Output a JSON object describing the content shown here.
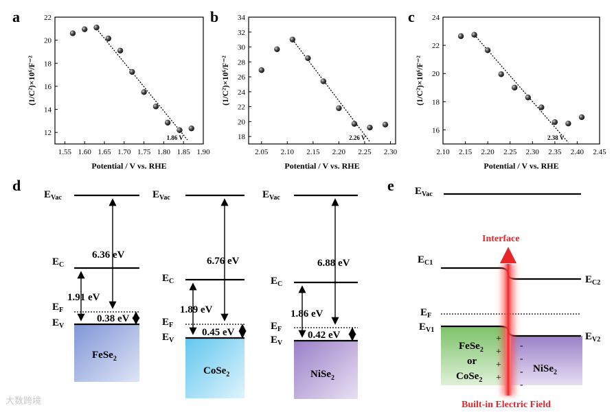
{
  "panels": {
    "a": {
      "letter": "a",
      "chart_data": {
        "type": "scatter",
        "title": "",
        "xlabel": "Potential / V vs. RHE",
        "ylabel": "(1/C²)×10⁶/F⁻²",
        "xlim": [
          1.525,
          1.9
        ],
        "ylim": [
          11,
          22
        ],
        "xticks": [
          "1.55",
          "1.60",
          "1.65",
          "1.70",
          "1.75",
          "1.80",
          "1.85",
          "1.90"
        ],
        "yticks": [
          "12",
          "14",
          "16",
          "18",
          "20",
          "22"
        ],
        "points": [
          [
            1.57,
            20.6
          ],
          [
            1.6,
            20.95
          ],
          [
            1.63,
            21.1
          ],
          [
            1.66,
            20.15
          ],
          [
            1.69,
            19.1
          ],
          [
            1.72,
            17.25
          ],
          [
            1.75,
            15.5
          ],
          [
            1.78,
            14.25
          ],
          [
            1.81,
            12.85
          ],
          [
            1.84,
            12.2
          ],
          [
            1.87,
            12.35
          ]
        ],
        "fit": [
          [
            1.63,
            21.0
          ],
          [
            1.86,
            11.35
          ]
        ],
        "fit_label": "1.86 V"
      }
    },
    "b": {
      "letter": "b",
      "chart_data": {
        "type": "scatter",
        "title": "",
        "xlabel": "Potential / V vs. RHE",
        "ylabel": "(1/C²)×10⁶/F⁻²",
        "xlim": [
          2.025,
          2.31
        ],
        "ylim": [
          17,
          34
        ],
        "xticks": [
          "2.05",
          "2.10",
          "2.15",
          "2.20",
          "2.25",
          "2.30"
        ],
        "yticks": [
          "18",
          "20",
          "22",
          "24",
          "26",
          "28",
          "30",
          "32",
          "34"
        ],
        "points": [
          [
            2.05,
            26.9
          ],
          [
            2.08,
            29.7
          ],
          [
            2.11,
            31.0
          ],
          [
            2.14,
            28.5
          ],
          [
            2.17,
            25.4
          ],
          [
            2.2,
            21.8
          ],
          [
            2.23,
            19.7
          ],
          [
            2.26,
            19.2
          ],
          [
            2.29,
            19.6
          ]
        ],
        "fit": [
          [
            2.11,
            31.0
          ],
          [
            2.26,
            17.3
          ]
        ],
        "fit_label": "2.26 V"
      }
    },
    "c": {
      "letter": "c",
      "chart_data": {
        "type": "scatter",
        "title": "",
        "xlabel": "Potential / V vs. RHE",
        "ylabel": "(1/C²)×10⁶/F⁻²",
        "xlim": [
          2.1,
          2.45
        ],
        "ylim": [
          15,
          24
        ],
        "xticks": [
          "2.10",
          "2.15",
          "2.20",
          "2.25",
          "2.30",
          "2.35",
          "2.40",
          "2.45"
        ],
        "yticks": [
          "16",
          "18",
          "20",
          "22",
          "24"
        ],
        "points": [
          [
            2.14,
            22.65
          ],
          [
            2.17,
            22.75
          ],
          [
            2.2,
            21.65
          ],
          [
            2.23,
            19.95
          ],
          [
            2.26,
            19.0
          ],
          [
            2.29,
            18.3
          ],
          [
            2.32,
            17.6
          ],
          [
            2.35,
            16.55
          ],
          [
            2.38,
            16.45
          ],
          [
            2.41,
            16.9
          ]
        ],
        "fit": [
          [
            2.17,
            22.75
          ],
          [
            2.38,
            15.1
          ]
        ],
        "fit_label": "2.38 V"
      }
    },
    "d": {
      "letter": "d",
      "evac": "E",
      "evac_sub": "Vac",
      "ec": "E",
      "ec_sub": "C",
      "ef": "E",
      "ef_sub": "F",
      "ev": "E",
      "ev_sub": "V",
      "materials": [
        {
          "name": "FeSe",
          "sub": "2",
          "work": "6.36 eV",
          "gap": "1.91 eV",
          "offset": "0.38 eV",
          "color_top": "#7f95d6",
          "color_bottom": "#dfe5f6"
        },
        {
          "name": "CoSe",
          "sub": "2",
          "work": "6.76 eV",
          "gap": "1.89 eV",
          "offset": "0.45 eV",
          "color_top": "#62c6ef",
          "color_bottom": "#e0f4fc"
        },
        {
          "name": "NiSe",
          "sub": "2",
          "work": "6.88 eV",
          "gap": "1.86 eV",
          "offset": "0.42 eV",
          "color_top": "#9a80c8",
          "color_bottom": "#e8e0f2"
        }
      ]
    },
    "e": {
      "letter": "e",
      "evac": "E",
      "evac_sub": "Vac",
      "ec1": "E",
      "ec1_sub": "C1",
      "ec2": "E",
      "ec2_sub": "C2",
      "ef": "E",
      "ef_sub": "F",
      "ev1": "E",
      "ev1_sub": "V1",
      "ev2": "E",
      "ev2_sub": "V2",
      "interface": "Interface",
      "field": "Built-in Electric Field",
      "left_line1": "FeSe",
      "left_line1_sub": "2",
      "left_line2": "or",
      "left_line3": "CoSe",
      "left_line3_sub": "2",
      "right_name": "NiSe",
      "right_sub": "2",
      "plus": "+",
      "minus": "-",
      "red": "#e8262a",
      "green": "#8cc87a",
      "purple": "#9a80c8"
    }
  },
  "watermark": "大数跨境"
}
